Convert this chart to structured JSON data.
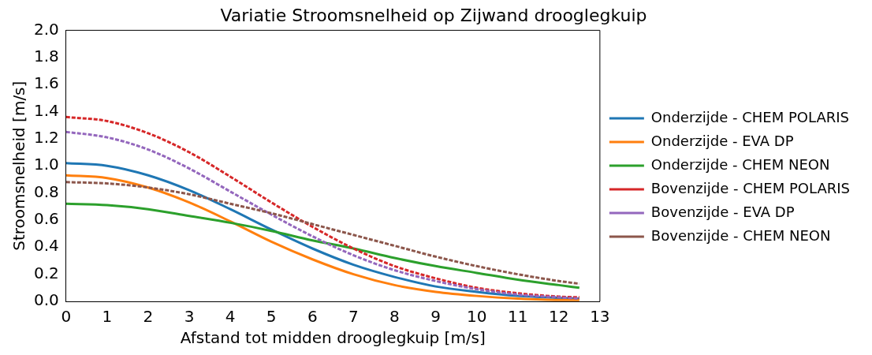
{
  "chart_data": {
    "type": "line",
    "title": "Variatie Stroomsnelheid op Zijwand drooglegkuip",
    "xlabel": "Afstand tot midden drooglegkuip [m/s]",
    "ylabel": "Stroomsnelheid [m/s]",
    "x": [
      0,
      1,
      2,
      3,
      4,
      5,
      6,
      7,
      8,
      9,
      10,
      11,
      12,
      12.5
    ],
    "xlim": [
      0,
      13
    ],
    "xticks": [
      0,
      1,
      2,
      3,
      4,
      5,
      6,
      7,
      8,
      9,
      10,
      11,
      12,
      13
    ],
    "ylim": [
      0,
      2
    ],
    "yticks": [
      {
        "value": 0,
        "label": "0.0"
      },
      {
        "value": 0.2,
        "label": "0.2"
      },
      {
        "value": 0.4,
        "label": "0.4"
      },
      {
        "value": 0.6,
        "label": "0.6"
      },
      {
        "value": 0.8,
        "label": "0.8"
      },
      {
        "value": 1,
        "label": "1.0"
      },
      {
        "value": 1.2,
        "label": "1.2"
      },
      {
        "value": 1.4,
        "label": "1.4"
      },
      {
        "value": 1.6,
        "label": "1.6"
      },
      {
        "value": 1.8,
        "label": "1.8"
      },
      {
        "value": 2,
        "label": "2.0"
      }
    ],
    "grid": false,
    "legend": "right",
    "marker": "none",
    "series": [
      {
        "name": "Onderzijde - CHEM POLARIS",
        "color": "#1f77b4",
        "line_style": "solid",
        "values": [
          1.02,
          1.0,
          0.93,
          0.82,
          0.68,
          0.53,
          0.39,
          0.27,
          0.18,
          0.11,
          0.07,
          0.04,
          0.025,
          0.02
        ]
      },
      {
        "name": "Onderzijde - EVA DP",
        "color": "#ff7f0e",
        "line_style": "solid",
        "values": [
          0.93,
          0.91,
          0.84,
          0.73,
          0.59,
          0.44,
          0.31,
          0.2,
          0.12,
          0.07,
          0.04,
          0.02,
          0.01,
          0.01
        ]
      },
      {
        "name": "Onderzijde - CHEM NEON",
        "color": "#2ca02c",
        "line_style": "solid",
        "values": [
          0.72,
          0.71,
          0.68,
          0.63,
          0.58,
          0.52,
          0.45,
          0.39,
          0.32,
          0.26,
          0.21,
          0.16,
          0.12,
          0.1
        ]
      },
      {
        "name": "Bovenzijde - CHEM POLARIS",
        "color": "#d62728",
        "line_style": "dashed",
        "values": [
          1.36,
          1.33,
          1.24,
          1.1,
          0.92,
          0.73,
          0.55,
          0.39,
          0.26,
          0.17,
          0.1,
          0.06,
          0.035,
          0.03
        ]
      },
      {
        "name": "Bovenzijde - EVA DP",
        "color": "#9467bd",
        "line_style": "dashed",
        "values": [
          1.25,
          1.21,
          1.12,
          0.98,
          0.81,
          0.64,
          0.48,
          0.34,
          0.23,
          0.15,
          0.09,
          0.05,
          0.03,
          0.02
        ]
      },
      {
        "name": "Bovenzijde - CHEM NEON",
        "color": "#8c564b",
        "line_style": "dashed",
        "values": [
          0.88,
          0.87,
          0.84,
          0.79,
          0.72,
          0.65,
          0.57,
          0.49,
          0.41,
          0.33,
          0.26,
          0.2,
          0.15,
          0.13
        ]
      }
    ]
  }
}
